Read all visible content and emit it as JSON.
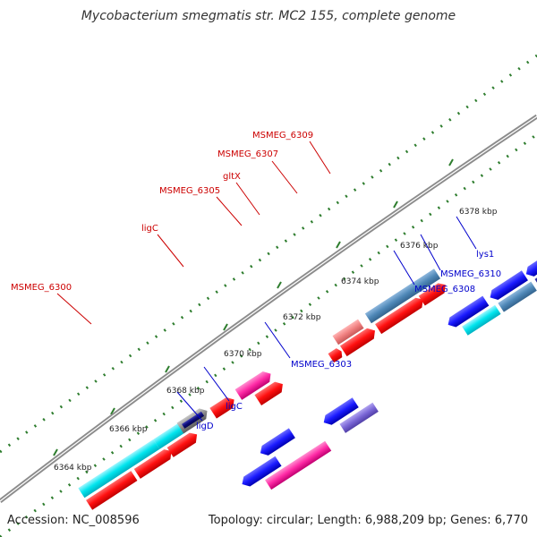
{
  "title": "Mycobacterium smegmatis str. MC2 155, complete genome",
  "footer": {
    "accession": "Accession: NC_008596",
    "summary": "Topology: circular; Length: 6,988,209 bp; Genes: 6,770"
  },
  "colors": {
    "backbone": "#8c8c8c",
    "tick": "#2e7d2e",
    "red_gene": "#ff1010",
    "blue_gene": "#1a1aff",
    "pink_gene": "#ff2aa6",
    "cyan_gene": "#00e5ee",
    "steel_gene": "#4f88b8",
    "salmon_gene": "#f08080",
    "navy_gene": "#0c0c7a",
    "violet_gene": "#7a66d6",
    "label_red": "#cc0000",
    "label_blue": "#0000cc"
  },
  "scale_labels": [
    "6364 kbp",
    "6366 kbp",
    "6368 kbp",
    "6370 kbp",
    "6372 kbp",
    "6374 kbp",
    "6376 kbp",
    "6378 kbp"
  ],
  "gene_labels_top": [
    "MSMEG_6300",
    "ligC",
    "MSMEG_6305",
    "gltX",
    "MSMEG_6307",
    "MSMEG_6309"
  ],
  "gene_labels_bottom": [
    "ligD",
    "ligC",
    "MSMEG_6303",
    "MSMEG_6308",
    "MSMEG_6310",
    "lys1"
  ]
}
